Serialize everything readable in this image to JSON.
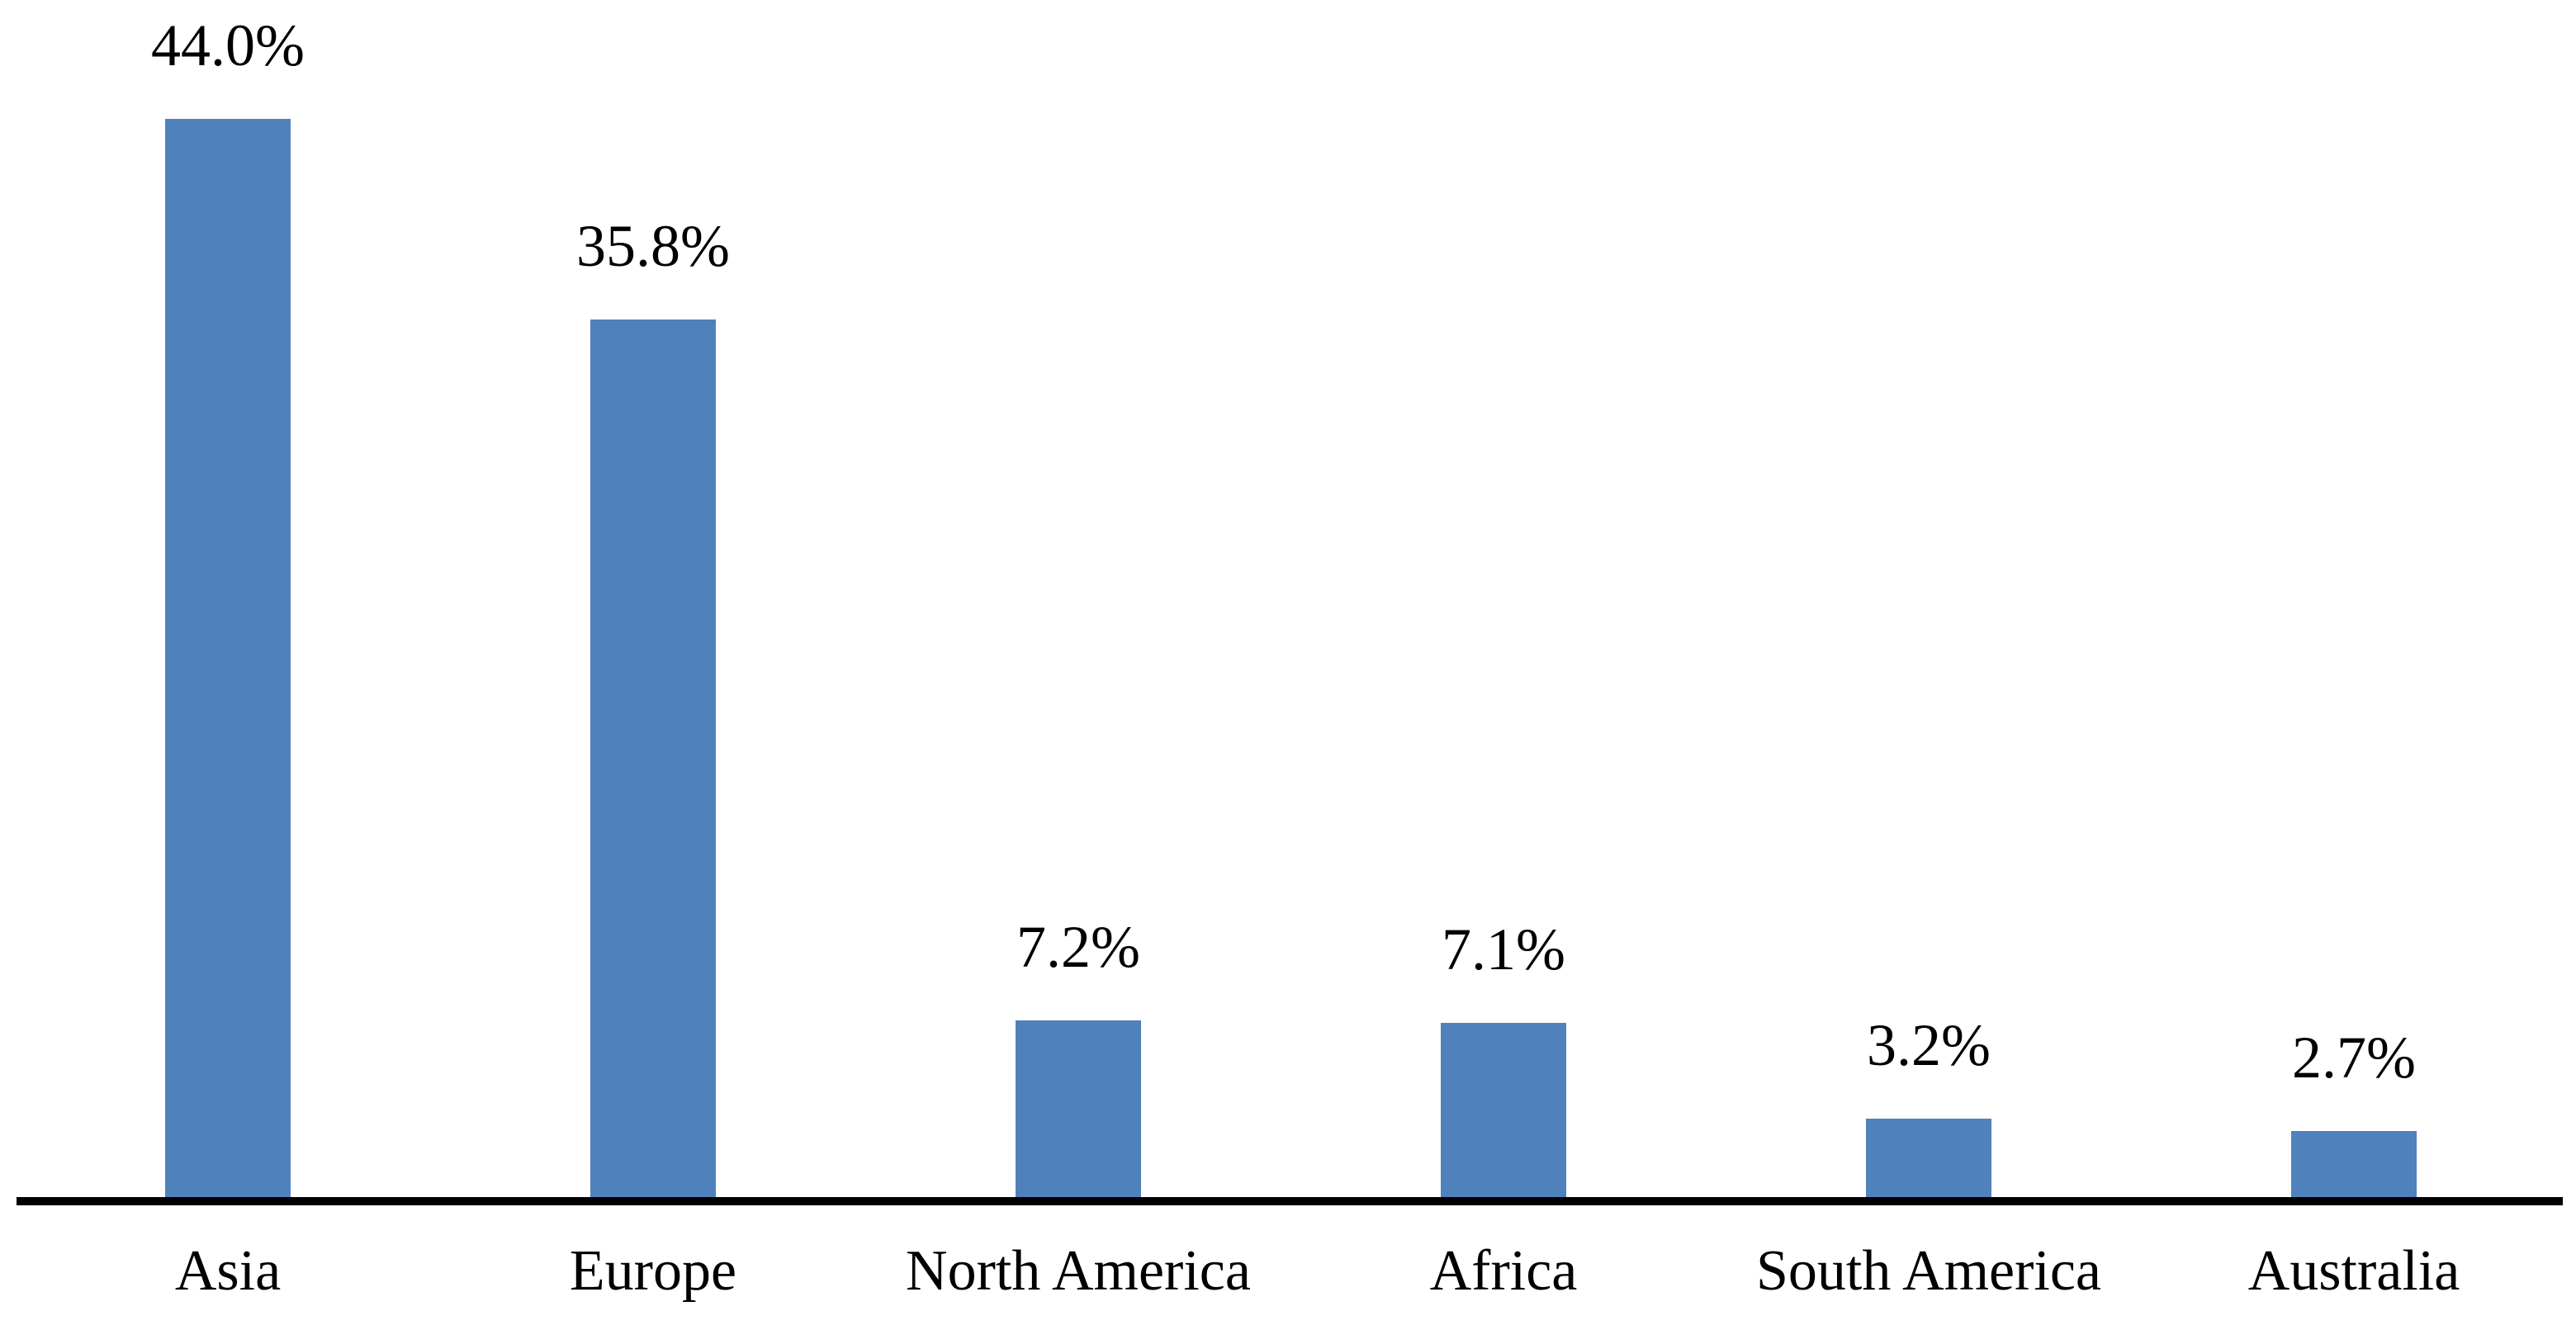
{
  "chart_data": {
    "type": "bar",
    "title": "",
    "xlabel": "",
    "ylabel": "",
    "categories": [
      "Asia",
      "Europe",
      "North America",
      "Africa",
      "South America",
      "Australia"
    ],
    "values": [
      44.0,
      35.8,
      7.2,
      7.1,
      3.2,
      2.7
    ],
    "data_labels": [
      "44.0%",
      "35.8%",
      "7.2%",
      "7.1%",
      "3.2%",
      "2.7%"
    ],
    "unit": "%",
    "ylim": [
      0,
      48.8
    ],
    "grid": false,
    "legend_position": "none",
    "bar_color": "#4f81bd",
    "axis_line_color": "#000000",
    "label_color": "#000000",
    "background_color": "#ffffff"
  }
}
